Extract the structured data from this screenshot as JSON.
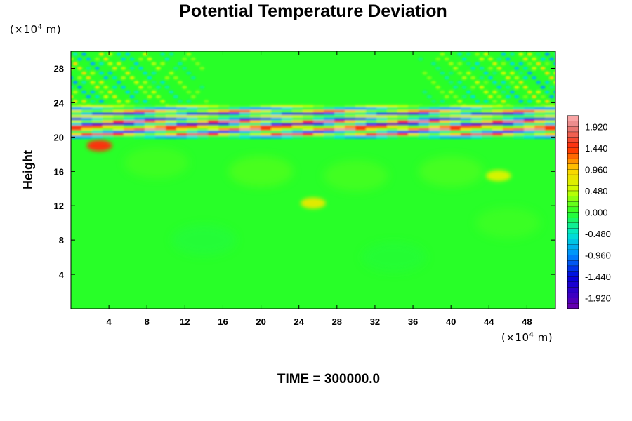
{
  "chart_data": {
    "type": "heatmap",
    "title": "Potential Temperature Deviation",
    "ylabel": "Height",
    "y_unit": "(×10",
    "y_unit_exp": "4",
    "y_unit_tail": " m)",
    "x_unit": "(×10",
    "x_unit_exp": "4",
    "x_unit_tail": " m)",
    "xlim": [
      0,
      51
    ],
    "ylim": [
      0,
      30
    ],
    "x_ticks": [
      "4",
      "8",
      "12",
      "16",
      "20",
      "24",
      "28",
      "32",
      "36",
      "40",
      "44",
      "48"
    ],
    "x_tick_values": [
      4,
      8,
      12,
      16,
      20,
      24,
      28,
      32,
      36,
      40,
      44,
      48
    ],
    "y_ticks": [
      "4",
      "8",
      "12",
      "16",
      "20",
      "24",
      "28"
    ],
    "y_tick_values": [
      4,
      8,
      12,
      16,
      20,
      24,
      28
    ],
    "colorbar": {
      "labels": [
        "1.920",
        "1.440",
        "0.960",
        "0.480",
        "0.000",
        "-0.480",
        "-0.960",
        "-1.440",
        "-1.920"
      ],
      "values": [
        1.92,
        1.44,
        0.96,
        0.48,
        0.0,
        -0.48,
        -0.96,
        -1.44,
        -1.92
      ],
      "min": -2.16,
      "max": 2.16
    },
    "features": [
      {
        "kind": "alternating band",
        "y_range": [
          20,
          23.5
        ],
        "x_range": [
          0,
          51
        ],
        "amplitude": 1.92
      },
      {
        "kind": "warm patch",
        "x": 3,
        "y": 19,
        "value": 1.5
      },
      {
        "kind": "weak warm patch",
        "x": 25.5,
        "y": 12.3,
        "value": 0.7
      },
      {
        "kind": "weak warm patch",
        "x": 45,
        "y": 15.5,
        "value": 0.6
      },
      {
        "kind": "wave field",
        "y_range": [
          23.5,
          30
        ],
        "amplitude": 0.9
      }
    ]
  },
  "footer": {
    "text": "TIME = 300000.0"
  }
}
